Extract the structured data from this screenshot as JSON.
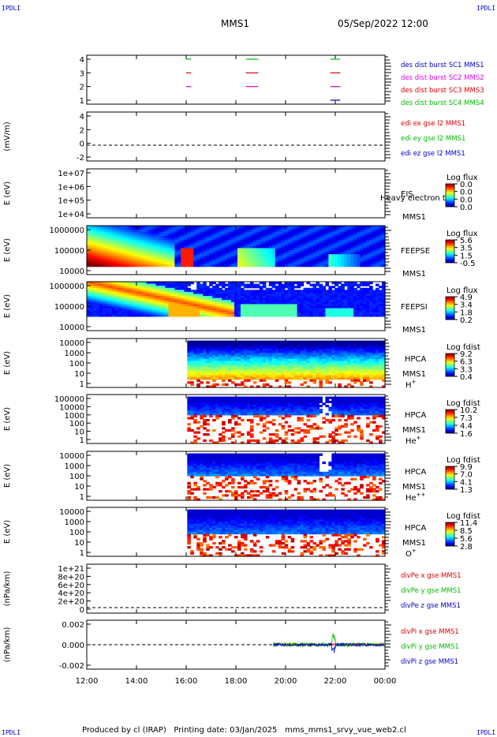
{
  "corner_label": "IPDLI",
  "header": {
    "mission": "MMS1",
    "date": "05/Sep/2022 12:00"
  },
  "footer": {
    "producer": "Produced by cl (IRAP)",
    "printing": "Printing date: 03/Jan/2025",
    "file": "mms_mms1_srvy_vue_web2.cl"
  },
  "colors": {
    "red": "#dd0000",
    "green": "#00bb00",
    "blue": "#0000cc",
    "magenta": "#dd00dd"
  },
  "chart_data": [
    {
      "type": "line",
      "x_ticks": [
        "12:00",
        "14:00",
        "16:00",
        "18:00",
        "20:00",
        "22:00",
        "00:00"
      ],
      "y_ticks": [
        "4",
        "3",
        "2",
        "1"
      ],
      "legend": [
        {
          "label": "des dist burst SC1 MMS1",
          "color": "#0000cc"
        },
        {
          "label": "des dist burst SC2 MMS2",
          "color": "#dd00dd"
        },
        {
          "label": "des dist burst SC3 MMS3",
          "color": "#dd0000"
        },
        {
          "label": "des dist burst SC4 MMS4",
          "color": "#00bb00"
        }
      ],
      "segments": [
        {
          "y": 4,
          "x": [
            16.0,
            16.2
          ],
          "color": "#00bb00"
        },
        {
          "y": 4,
          "x": [
            18.4,
            18.9
          ],
          "color": "#00bb00"
        },
        {
          "y": 4,
          "x": [
            21.8,
            22.2
          ],
          "color": "#00bb00"
        },
        {
          "y": 3,
          "x": [
            16.0,
            16.2
          ],
          "color": "#dd0000"
        },
        {
          "y": 3,
          "x": [
            18.4,
            18.9
          ],
          "color": "#dd0000"
        },
        {
          "y": 3,
          "x": [
            21.8,
            22.2
          ],
          "color": "#dd0000"
        },
        {
          "y": 2,
          "x": [
            16.0,
            16.2
          ],
          "color": "#dd00dd"
        },
        {
          "y": 2,
          "x": [
            18.4,
            18.9
          ],
          "color": "#dd00dd"
        },
        {
          "y": 2,
          "x": [
            21.8,
            22.2
          ],
          "color": "#dd00dd"
        },
        {
          "y": 1,
          "x": [
            21.8,
            22.2
          ],
          "color": "#0000cc"
        }
      ]
    },
    {
      "type": "line",
      "ylabel": "(mV/m)",
      "y_ticks": [
        "4",
        "2",
        "0",
        "-2"
      ],
      "legend": [
        {
          "label": "edi ex gse l2 MMS1",
          "color": "#dd0000"
        },
        {
          "label": "edi ey gse l2 MMS1",
          "color": "#00bb00"
        },
        {
          "label": "edi ez gse l2 MMS1",
          "color": "#0000cc"
        }
      ]
    },
    {
      "type": "heatmap",
      "ylabel": "E (eV)",
      "y_ticks": [
        "1e+07",
        "1e+06",
        "1e+05",
        "1e+04"
      ],
      "labels": [
        "EIS",
        "MMS1"
      ],
      "overlap_text": "Heavy electron to",
      "colorbar": {
        "title": "Log flux",
        "ticks": [
          "0.0",
          "0.0",
          "0.0",
          "0.0"
        ]
      }
    },
    {
      "type": "heatmap",
      "ylabel": "E (eV)",
      "y_ticks": [
        "1000000",
        "100000",
        "10000"
      ],
      "labels": [
        "FEEPSE",
        "MMS1"
      ],
      "colorbar": {
        "title": "Log flux",
        "ticks": [
          "5.6",
          "3.5",
          "1.5",
          "-0.5"
        ]
      }
    },
    {
      "type": "heatmap",
      "ylabel": "E (eV)",
      "y_ticks": [
        "1000000",
        "100000",
        "10000"
      ],
      "labels": [
        "FEEPSI",
        "MMS1"
      ],
      "colorbar": {
        "title": "Log flux",
        "ticks": [
          "4.9",
          "3.4",
          "1.8",
          "0.2"
        ]
      }
    },
    {
      "type": "heatmap",
      "ylabel": "E (eV)",
      "y_ticks": [
        "10000",
        "1000",
        "100",
        "10",
        "1"
      ],
      "labels": [
        "HPCA",
        "MMS1"
      ],
      "species": "H",
      "charge": "+",
      "colorbar": {
        "title": "Log fdist",
        "ticks": [
          "9.2",
          "6.3",
          "3.3",
          "0.4"
        ]
      }
    },
    {
      "type": "heatmap",
      "ylabel": "E (eV)",
      "y_ticks": [
        "100000",
        "10000",
        "1000",
        "100",
        "10",
        "1"
      ],
      "labels": [
        "HPCA",
        "MMS1"
      ],
      "species": "He",
      "charge": "+",
      "colorbar": {
        "title": "Log fdist",
        "ticks": [
          "10.2",
          "7.3",
          "4.4",
          "1.6"
        ]
      }
    },
    {
      "type": "heatmap",
      "ylabel": "E (eV)",
      "y_ticks": [
        "10000",
        "1000",
        "100",
        "10",
        "1"
      ],
      "labels": [
        "HPCA",
        "MMS1"
      ],
      "species": "He",
      "charge": "++",
      "colorbar": {
        "title": "Log fdist",
        "ticks": [
          "9.9",
          "7.0",
          "4.1",
          "1.3"
        ]
      }
    },
    {
      "type": "heatmap",
      "ylabel": "E (eV)",
      "y_ticks": [
        "10000",
        "1000",
        "100",
        "10",
        "1"
      ],
      "labels": [
        "HPCA",
        "MMS1"
      ],
      "species": "O",
      "charge": "+",
      "colorbar": {
        "title": "Log fdist",
        "ticks": [
          "11.4",
          "8.5",
          "5.6",
          "2.8"
        ]
      }
    },
    {
      "type": "line",
      "ylabel": "(nPa/km)",
      "y_ticks": [
        "1e+21",
        "8e+20",
        "6e+20",
        "4e+20",
        "2e+20",
        "0"
      ],
      "legend": [
        {
          "label": "divPe x gse MMS1",
          "color": "#dd0000"
        },
        {
          "label": "divPe y gse MMS1",
          "color": "#00bb00"
        },
        {
          "label": "divPe z gse MMS1",
          "color": "#0000cc"
        }
      ]
    },
    {
      "type": "line",
      "ylabel": "(nPa/km)",
      "y_ticks": [
        "0.002",
        "0.000",
        "-0.002"
      ],
      "legend": [
        {
          "label": "divPi x gse MMS1",
          "color": "#dd0000"
        },
        {
          "label": "divPi y gse MMS1",
          "color": "#00bb00"
        },
        {
          "label": "divPi z gse MMS1",
          "color": "#0000cc"
        }
      ]
    }
  ]
}
